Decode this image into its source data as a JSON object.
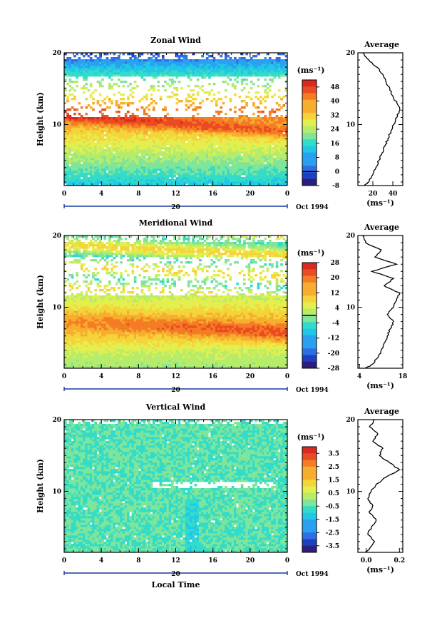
{
  "chart_data": [
    {
      "type": "heatmap",
      "title": "Zonal Wind",
      "xlabel": "",
      "ylabel": "Height (km)",
      "xlim": [
        0,
        24
      ],
      "ylim": [
        1.5,
        20
      ],
      "x_ticks": [
        "0",
        "4",
        "8",
        "12",
        "16",
        "20",
        "0"
      ],
      "y_ticks": [
        "10",
        "20"
      ],
      "date_label": "Oct 1994",
      "day_label": "20",
      "colorbar": {
        "unit": "(ms⁻¹)",
        "min": -8,
        "max": 52,
        "tick_labels": [
          "48",
          "40",
          "32",
          "24",
          "16",
          "8",
          "0",
          "-8"
        ],
        "zero_line": 0
      },
      "profile": {
        "title": "Average",
        "xlabel": "(ms⁻¹)",
        "xlim": [
          5,
          50
        ],
        "x_ticks": [
          "20",
          "40"
        ],
        "y_ticks": [
          "10",
          "20"
        ],
        "height_km": [
          1.5,
          2,
          3,
          4,
          5,
          6,
          7,
          8,
          9,
          10,
          11,
          12,
          13,
          14,
          15,
          16,
          17,
          18,
          19,
          20
        ],
        "values": [
          12,
          16,
          20,
          23,
          26,
          29,
          32,
          35,
          38,
          41,
          44,
          47,
          44,
          40,
          37,
          33,
          30,
          24,
          16,
          10
        ]
      }
    },
    {
      "type": "heatmap",
      "title": "Meridional Wind",
      "xlabel": "",
      "ylabel": "Height (km)",
      "xlim": [
        0,
        24
      ],
      "ylim": [
        1.5,
        20
      ],
      "x_ticks": [
        "0",
        "4",
        "8",
        "12",
        "16",
        "20",
        "0"
      ],
      "y_ticks": [
        "10",
        "20"
      ],
      "date_label": "Oct 1994",
      "day_label": "20",
      "colorbar": {
        "unit": "(ms⁻¹)",
        "min": -28,
        "max": 28,
        "tick_labels": [
          "28",
          "20",
          "12",
          "4",
          "-4",
          "-12",
          "-20",
          "-28"
        ],
        "zero_line": 0
      },
      "profile": {
        "title": "Average",
        "xlabel": "(ms⁻¹)",
        "xlim": [
          3.5,
          18
        ],
        "x_ticks": [
          "4",
          "18"
        ],
        "y_ticks": [
          "10",
          "20"
        ],
        "height_km": [
          1.5,
          2,
          3,
          4,
          5,
          6,
          7,
          8,
          9,
          10,
          11,
          12,
          13,
          14,
          15,
          16,
          17,
          18,
          19,
          20
        ],
        "values": [
          6,
          8,
          10,
          11,
          12,
          13,
          14,
          15,
          13,
          15,
          16,
          17,
          12,
          15,
          8,
          16,
          9,
          11,
          6,
          5
        ]
      }
    },
    {
      "type": "heatmap",
      "title": "Vertical Wind",
      "xlabel": "Local Time",
      "ylabel": "Height (km)",
      "xlim": [
        0,
        24
      ],
      "ylim": [
        1.5,
        20
      ],
      "x_ticks": [
        "0",
        "4",
        "8",
        "12",
        "16",
        "20",
        "0"
      ],
      "y_ticks": [
        "10",
        "20"
      ],
      "date_label": "Oct 1994",
      "day_label": "20",
      "colorbar": {
        "unit": "(ms⁻¹)",
        "min": -4,
        "max": 4,
        "tick_labels": [
          "3.5",
          "2.5",
          "1.5",
          "0.5",
          "-0.5",
          "-1.5",
          "-2.5",
          "-3.5"
        ],
        "zero_line": null
      },
      "profile": {
        "title": "Average",
        "xlabel": "(ms⁻¹)",
        "xlim": [
          -0.05,
          0.22
        ],
        "x_ticks": [
          "0.0",
          "0.2"
        ],
        "y_ticks": [
          "10",
          "20"
        ],
        "height_km": [
          1.5,
          2,
          3,
          4,
          5,
          6,
          7,
          8,
          9,
          10,
          11,
          12,
          13,
          14,
          15,
          16,
          17,
          18,
          19,
          20
        ],
        "values": [
          0.0,
          0.02,
          0.05,
          0.01,
          0.03,
          0.06,
          0.02,
          0.04,
          0.01,
          0.03,
          0.06,
          0.12,
          0.2,
          0.14,
          0.08,
          0.1,
          0.04,
          0.07,
          0.02,
          0.05
        ]
      }
    }
  ]
}
